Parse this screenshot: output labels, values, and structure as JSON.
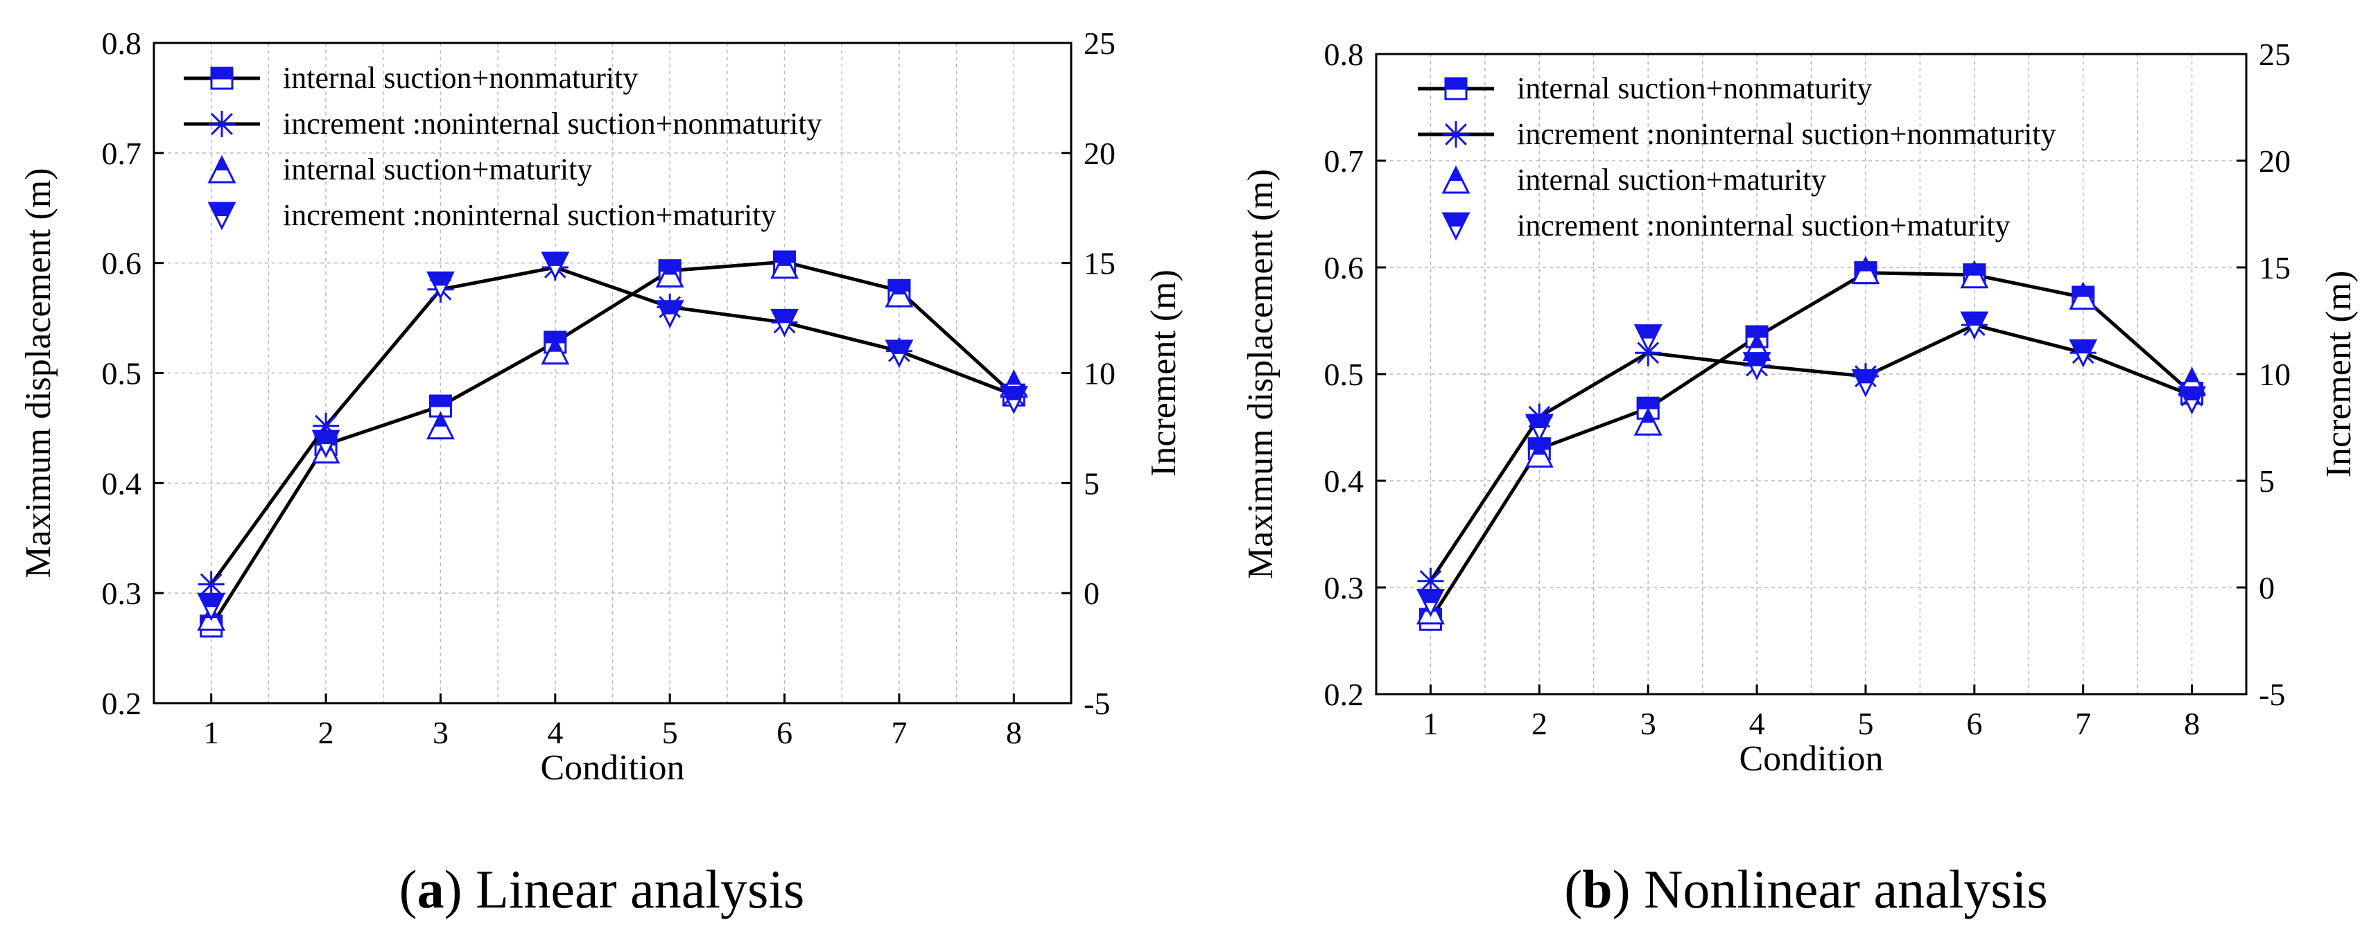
{
  "panels": [
    {
      "caption_letter": "a",
      "caption_text": " Linear analysis",
      "chart_data": {
        "type": "line",
        "title": "",
        "xlabel": "Condition",
        "ylabel": "Maximum displacement (m)",
        "y2label": "Increment (m)",
        "categories": [
          "1",
          "2",
          "3",
          "4",
          "5",
          "6",
          "7",
          "8"
        ],
        "xlim": [
          0.5,
          8.5
        ],
        "ylim": [
          0.2,
          0.8
        ],
        "y2lim": [
          -5,
          25
        ],
        "yticks": [
          "0.2",
          "0.3",
          "0.4",
          "0.5",
          "0.6",
          "0.7",
          "0.8"
        ],
        "y2ticks": [
          "-5",
          "0",
          "5",
          "10",
          "15",
          "20",
          "25"
        ],
        "grid": true,
        "legend_position": "top-left",
        "series": [
          {
            "name": "internal suction+nonmaturity",
            "marker": "square-half",
            "line": true,
            "axis": "left",
            "values": [
              0.27,
              0.435,
              0.47,
              0.528,
              0.593,
              0.601,
              0.575,
              0.48
            ]
          },
          {
            "name": "increment :noninternal suction+nonmaturity",
            "marker": "asterisk",
            "line": true,
            "axis": "right",
            "values": [
              0.4,
              7.6,
              13.8,
              14.8,
              13.0,
              12.3,
              11.0,
              9.0
            ]
          },
          {
            "name": "internal suction+maturity",
            "marker": "triangle-up-half",
            "line": false,
            "axis": "left",
            "values": [
              0.278,
              0.43,
              0.452,
              0.52,
              0.59,
              0.598,
              0.572,
              0.49
            ]
          },
          {
            "name": "increment :noninternal suction+maturity",
            "marker": "triangle-down-half",
            "line": false,
            "axis": "right",
            "values": [
              -0.6,
              6.8,
              14.0,
              14.9,
              12.7,
              12.3,
              10.9,
              8.8
            ]
          }
        ]
      }
    },
    {
      "caption_letter": "b",
      "caption_text": " Nonlinear analysis",
      "chart_data": {
        "type": "line",
        "title": "",
        "xlabel": "Condition",
        "ylabel": "Maximum displacement (m)",
        "y2label": "Increment (m)",
        "categories": [
          "1",
          "2",
          "3",
          "4",
          "5",
          "6",
          "7",
          "8"
        ],
        "xlim": [
          0.5,
          8.5
        ],
        "ylim": [
          0.2,
          0.8
        ],
        "y2lim": [
          -5,
          25
        ],
        "yticks": [
          "0.2",
          "0.3",
          "0.4",
          "0.5",
          "0.6",
          "0.7",
          "0.8"
        ],
        "y2ticks": [
          "-5",
          "0",
          "5",
          "10",
          "15",
          "20",
          "25"
        ],
        "grid": true,
        "legend_position": "top-left",
        "series": [
          {
            "name": "internal suction+nonmaturity",
            "marker": "square-half",
            "line": true,
            "axis": "left",
            "values": [
              0.27,
              0.43,
              0.468,
              0.535,
              0.595,
              0.593,
              0.572,
              0.482
            ]
          },
          {
            "name": "increment :noninternal suction+nonmaturity",
            "marker": "asterisk",
            "line": true,
            "axis": "right",
            "values": [
              0.3,
              8.0,
              11.0,
              10.4,
              9.9,
              12.3,
              11.0,
              9.0
            ]
          },
          {
            "name": "internal suction+maturity",
            "marker": "triangle-up-half",
            "line": false,
            "axis": "left",
            "values": [
              0.278,
              0.425,
              0.455,
              0.525,
              0.597,
              0.593,
              0.573,
              0.493
            ]
          },
          {
            "name": "increment :noninternal suction+maturity",
            "marker": "triangle-down-half",
            "line": false,
            "axis": "right",
            "values": [
              -0.7,
              7.5,
              11.7,
              10.4,
              9.6,
              12.3,
              11.0,
              8.8
            ]
          }
        ]
      }
    }
  ],
  "style": {
    "axis_color": "#000000",
    "grid_color": "#b8b8b8",
    "line_color": "#000000",
    "marker_color": "#1414e6"
  }
}
